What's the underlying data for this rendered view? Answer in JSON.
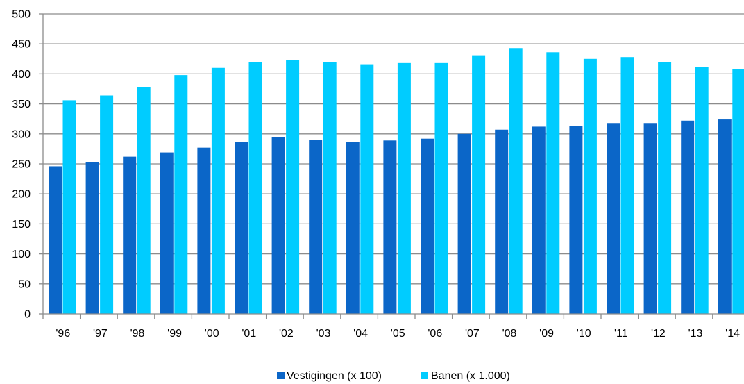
{
  "chart_data": {
    "type": "bar",
    "title": "",
    "xlabel": "",
    "ylabel": "",
    "ylim": [
      0,
      500
    ],
    "yticks": [
      "0",
      "50",
      "100",
      "150",
      "200",
      "250",
      "300",
      "350",
      "400",
      "450",
      "500"
    ],
    "grid": true,
    "legend_position": "bottom-center",
    "categories": [
      "'96",
      "'97",
      "'98",
      "'99",
      "'00",
      "'01",
      "'02",
      "'03",
      "'04",
      "'05",
      "'06",
      "'07",
      "'08",
      "'09",
      "'10",
      "'11",
      "'12",
      "'13",
      "'14"
    ],
    "series": [
      {
        "name": "Vestigingen (x 100)",
        "color": "#0B66C8",
        "values": [
          246,
          253,
          262,
          269,
          277,
          286,
          295,
          290,
          286,
          289,
          292,
          300,
          307,
          312,
          313,
          318,
          318,
          322,
          324
        ]
      },
      {
        "name": "Banen (x 1.000)",
        "color": "#00CCFF",
        "values": [
          356,
          364,
          378,
          398,
          410,
          419,
          423,
          420,
          416,
          418,
          418,
          431,
          443,
          436,
          425,
          428,
          419,
          412,
          408
        ]
      }
    ]
  }
}
